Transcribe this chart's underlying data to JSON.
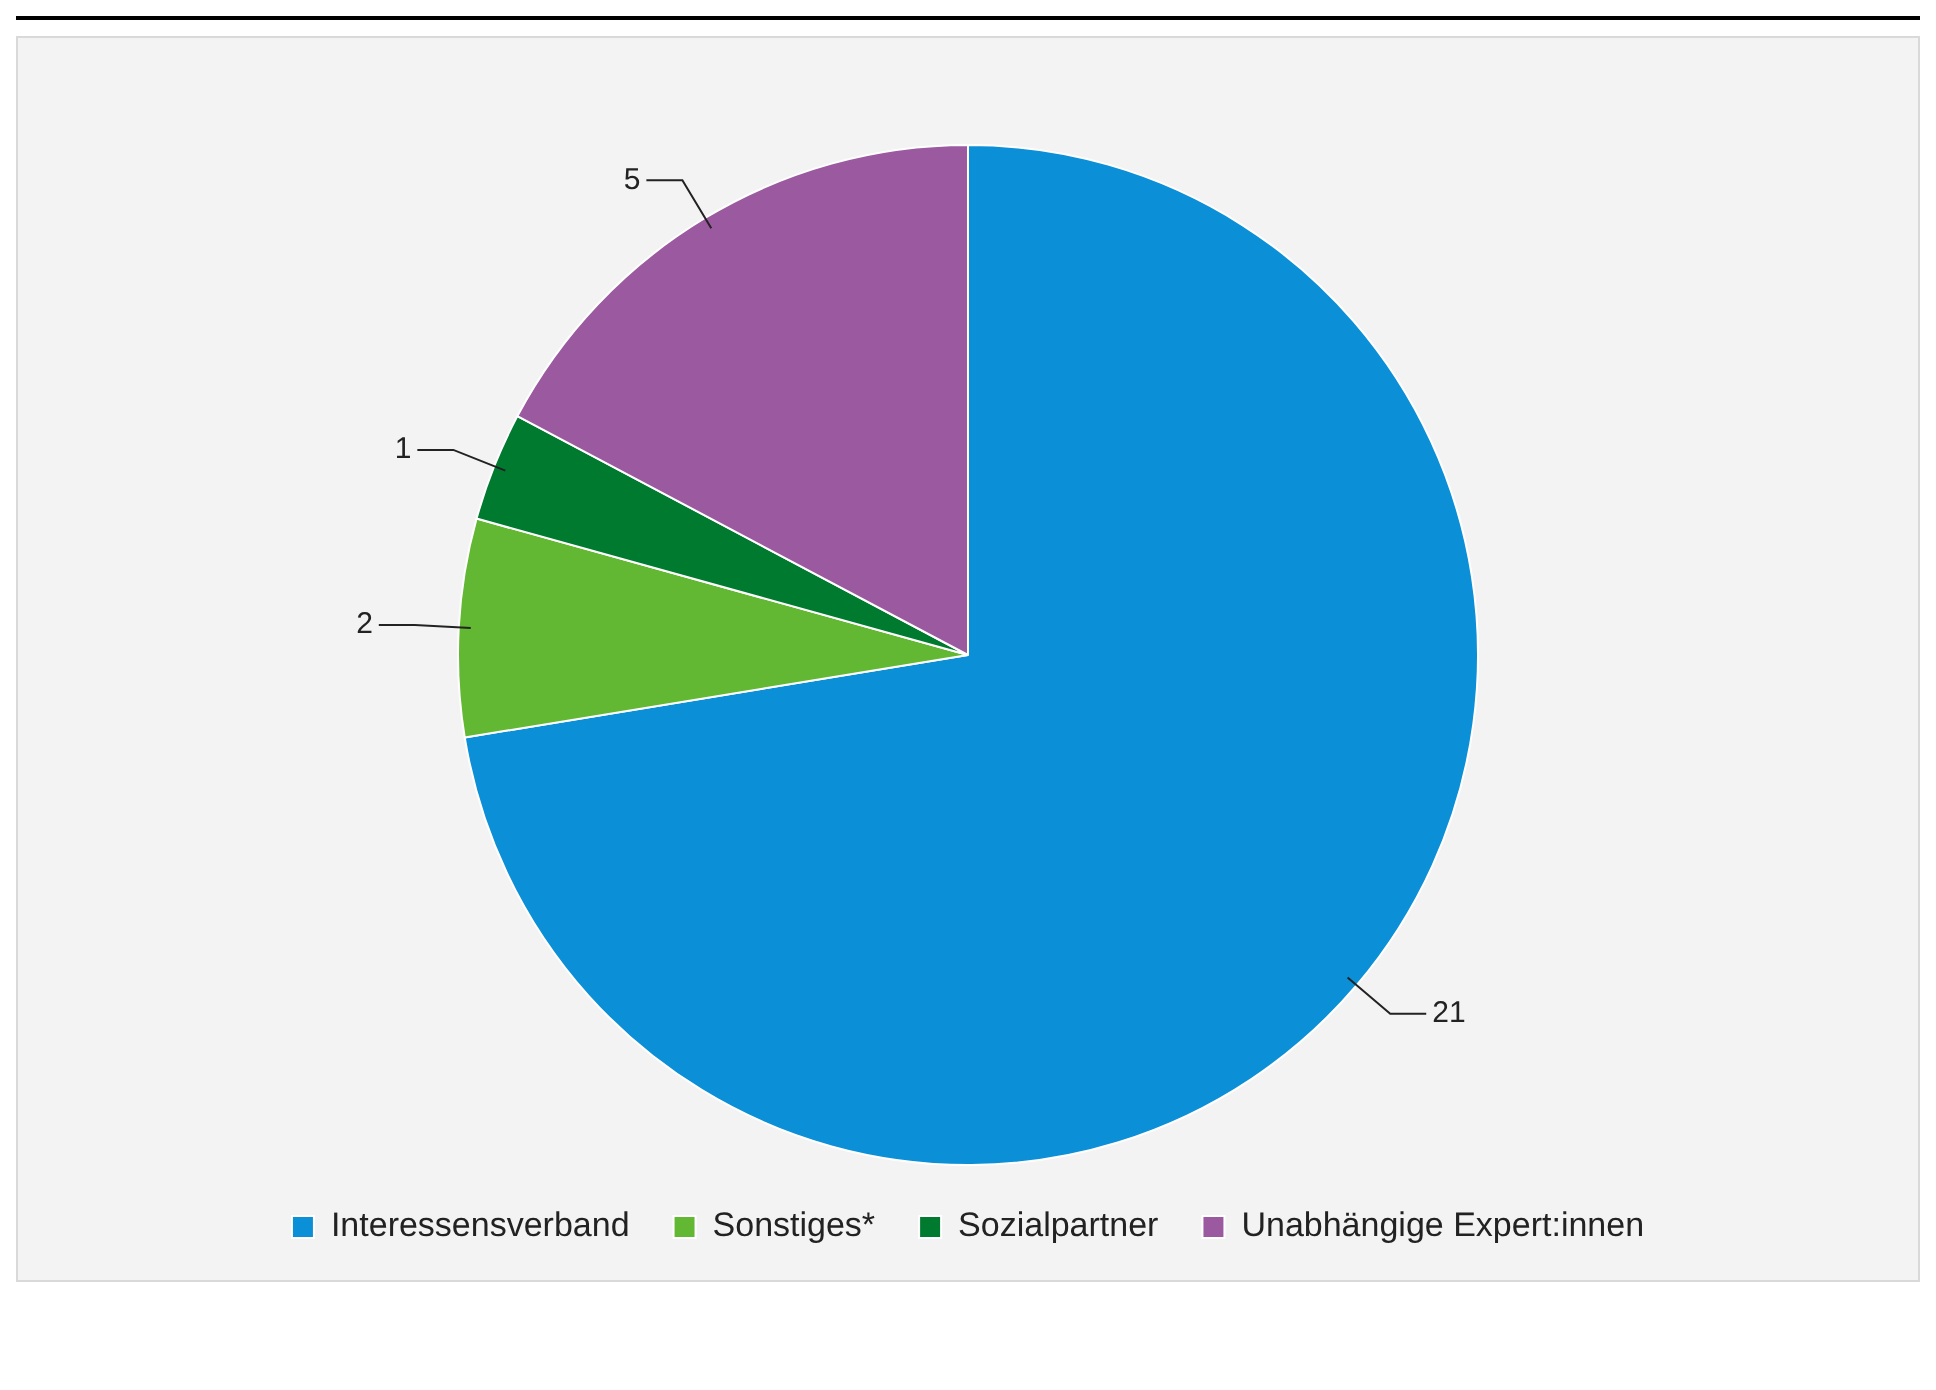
{
  "chart_data": {
    "type": "pie",
    "categories": [
      "Interessensverband",
      "Sonstiges*",
      "Sozialpartner",
      "Unabhängige Expert:innen"
    ],
    "values": [
      21,
      2,
      1,
      5
    ],
    "colors": [
      "#0b8fd6",
      "#62b832",
      "#007a2e",
      "#9b59a0"
    ],
    "data_labels": true,
    "legend": "bottom"
  }
}
